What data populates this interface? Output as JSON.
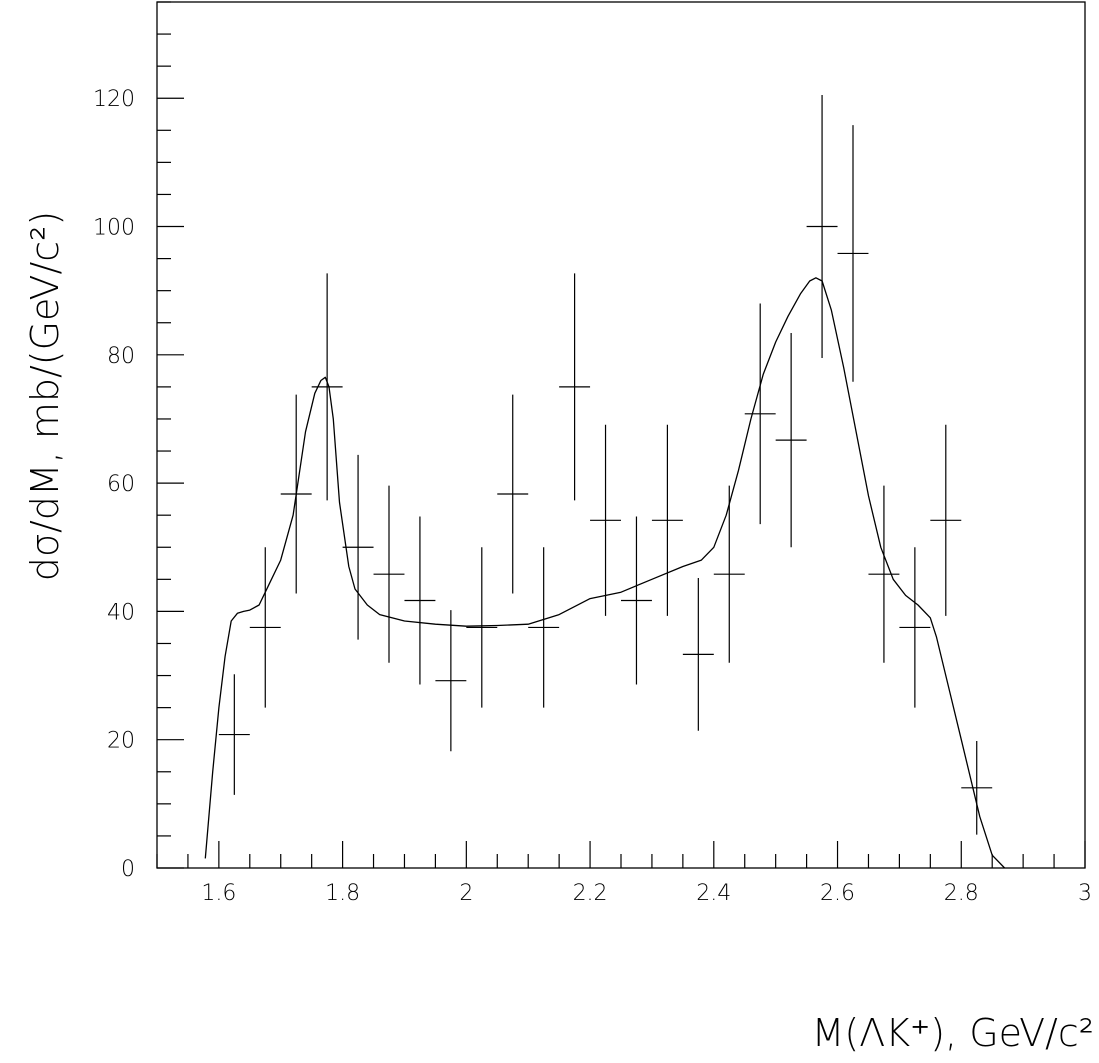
{
  "chart_data": {
    "type": "scatter",
    "xlim": [
      1.5,
      3.0
    ],
    "ylim": [
      0,
      135
    ],
    "x_ticks": [
      "1.6",
      "1.8",
      "2",
      "2.2",
      "2.4",
      "2.6",
      "2.8",
      "3"
    ],
    "y_ticks": [
      "0",
      "20",
      "40",
      "60",
      "80",
      "100",
      "120"
    ],
    "ylabel": "dσ/dM, mb/(GeV/c²)",
    "xlabel": "M(ΛK⁺), GeV/c²",
    "grid": false,
    "legend": "none",
    "series": [
      {
        "kind": "points_with_errors",
        "bin_half_width": 0.025,
        "x": [
          1.625,
          1.675,
          1.725,
          1.775,
          1.825,
          1.875,
          1.925,
          1.975,
          2.025,
          2.075,
          2.125,
          2.175,
          2.225,
          2.275,
          2.325,
          2.375,
          2.425,
          2.475,
          2.525,
          2.575,
          2.625,
          2.675,
          2.725,
          2.775,
          2.825
        ],
        "y": [
          20.8,
          37.5,
          58.3,
          75.0,
          50.0,
          45.8,
          41.7,
          29.2,
          37.5,
          58.3,
          37.5,
          75.0,
          54.2,
          41.7,
          54.2,
          33.3,
          45.8,
          70.8,
          66.7,
          100.0,
          95.8,
          45.8,
          37.5,
          54.2,
          12.5
        ],
        "y_err_low": [
          9.4,
          12.5,
          15.5,
          17.7,
          14.4,
          13.8,
          13.1,
          11.0,
          12.5,
          15.5,
          12.5,
          17.7,
          14.9,
          13.1,
          14.9,
          11.9,
          13.8,
          17.2,
          16.7,
          20.5,
          20.0,
          13.8,
          12.5,
          14.9,
          7.3
        ],
        "y_err_high": [
          9.4,
          12.5,
          15.5,
          17.7,
          14.4,
          13.8,
          13.1,
          11.0,
          12.5,
          15.5,
          12.5,
          17.7,
          14.9,
          13.1,
          14.9,
          11.9,
          13.8,
          17.2,
          16.7,
          20.5,
          20.0,
          13.8,
          12.5,
          14.9,
          7.3
        ]
      },
      {
        "kind": "curve",
        "x": [
          1.578,
          1.59,
          1.6,
          1.61,
          1.62,
          1.63,
          1.64,
          1.65,
          1.665,
          1.68,
          1.7,
          1.72,
          1.74,
          1.755,
          1.765,
          1.772,
          1.778,
          1.785,
          1.795,
          1.81,
          1.82,
          1.84,
          1.86,
          1.9,
          1.95,
          2.0,
          2.05,
          2.1,
          2.15,
          2.2,
          2.25,
          2.3,
          2.35,
          2.38,
          2.4,
          2.42,
          2.44,
          2.46,
          2.48,
          2.5,
          2.52,
          2.54,
          2.555,
          2.565,
          2.575,
          2.59,
          2.61,
          2.63,
          2.65,
          2.67,
          2.69,
          2.71,
          2.73,
          2.75,
          2.76,
          2.78,
          2.8,
          2.83,
          2.85,
          2.87
        ],
        "y": [
          1.5,
          15,
          25,
          33,
          38.5,
          39.7,
          40,
          40.2,
          41,
          44,
          48,
          55,
          68,
          74,
          76,
          76.5,
          75,
          70,
          57,
          47,
          43.5,
          41,
          39.5,
          38.5,
          38,
          37.7,
          37.8,
          38,
          39.5,
          42,
          43,
          45,
          47,
          48,
          50,
          55,
          62,
          70,
          77,
          82,
          86,
          89.5,
          91.5,
          92,
          91.5,
          87,
          78,
          68,
          58,
          50,
          45,
          42.5,
          41,
          39,
          36,
          28,
          20,
          8,
          2,
          0
        ]
      }
    ]
  }
}
